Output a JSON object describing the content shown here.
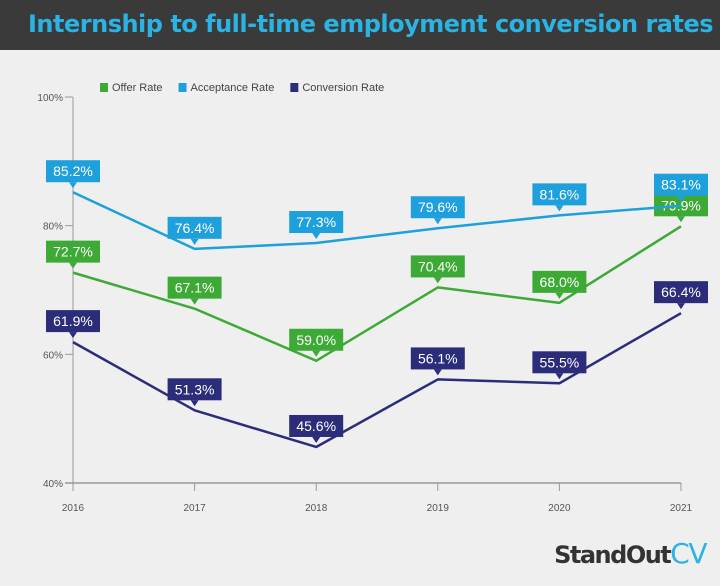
{
  "chart_data": {
    "type": "line",
    "title": "Internship to full-time employment conversion rates",
    "categories": [
      "2016",
      "2017",
      "2018",
      "2019",
      "2020",
      "2021"
    ],
    "ylim": [
      40,
      100
    ],
    "yticks": [
      40,
      60,
      80,
      100
    ],
    "ytick_labels": [
      "40%",
      "60%",
      "80%",
      "100%"
    ],
    "grid": false,
    "legend": "top",
    "series": [
      {
        "name": "Offer Rate",
        "color": "#3daa35",
        "values": [
          72.7,
          67.1,
          59.0,
          70.4,
          68.0,
          79.9
        ]
      },
      {
        "name": "Acceptance Rate",
        "color": "#1ea0dc",
        "values": [
          85.2,
          76.4,
          77.3,
          79.6,
          81.6,
          83.1
        ]
      },
      {
        "name": "Conversion Rate",
        "color": "#2b2d7a",
        "values": [
          61.9,
          51.3,
          45.6,
          56.1,
          55.5,
          66.4
        ]
      }
    ]
  },
  "logo": {
    "part1": "StandOut",
    "part2": "CV"
  }
}
